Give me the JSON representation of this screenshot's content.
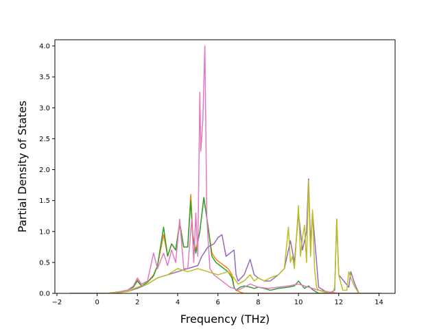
{
  "chart_data": {
    "type": "line",
    "title": "",
    "xlabel": "Frequency (THz)",
    "ylabel": "Partial Density of States",
    "xlim": [
      -2.1,
      14.8
    ],
    "ylim": [
      0.0,
      4.1
    ],
    "xticks": [
      -2,
      0,
      2,
      4,
      6,
      8,
      10,
      12,
      14
    ],
    "yticks": [
      0.0,
      0.5,
      1.0,
      1.5,
      2.0,
      2.5,
      3.0,
      3.5,
      4.0
    ],
    "xtick_labels": [
      "−2",
      "0",
      "2",
      "4",
      "6",
      "8",
      "10",
      "12",
      "14"
    ],
    "ytick_labels": [
      "0.0",
      "0.5",
      "1.0",
      "1.5",
      "2.0",
      "2.5",
      "3.0",
      "3.5",
      "4.0"
    ],
    "grid": false,
    "legend": null,
    "series": [
      {
        "color": "#ff7f0e",
        "x": [
          -1.35,
          0.5,
          1.0,
          1.5,
          1.8,
          2.0,
          2.2,
          2.5,
          2.8,
          3.0,
          3.3,
          3.5,
          3.7,
          3.9,
          4.1,
          4.3,
          4.5,
          4.65,
          4.75,
          4.9,
          5.1,
          5.3,
          5.5,
          5.7,
          5.9,
          6.1,
          6.3,
          6.5,
          6.7,
          6.8,
          6.9,
          7.1,
          7.3,
          7.6,
          7.8,
          8.0,
          8.3,
          8.6,
          9.0,
          9.5,
          9.9,
          10.1,
          10.3,
          10.5,
          10.7,
          10.9,
          11.0,
          11.6,
          12.0,
          12.5,
          13.0,
          14.1
        ],
        "y": [
          0.0,
          0.0,
          0.02,
          0.05,
          0.1,
          0.22,
          0.12,
          0.18,
          0.3,
          0.45,
          0.95,
          0.6,
          0.8,
          0.7,
          1.1,
          0.75,
          0.75,
          1.6,
          0.95,
          0.7,
          1.0,
          1.55,
          1.1,
          0.65,
          0.55,
          0.5,
          0.45,
          0.4,
          0.3,
          0.1,
          0.05,
          0.02,
          0.0,
          0.0,
          0.0,
          0.0,
          0.0,
          0.0,
          0.0,
          0.0,
          0.0,
          0.0,
          0.0,
          0.0,
          0.0,
          0.0,
          0.0,
          0.0,
          0.0,
          0.0,
          0.0,
          0.0
        ]
      },
      {
        "color": "#2ca02c",
        "x": [
          -1.35,
          0.5,
          1.0,
          1.5,
          1.8,
          2.0,
          2.2,
          2.5,
          2.8,
          3.0,
          3.3,
          3.5,
          3.7,
          3.9,
          4.1,
          4.3,
          4.5,
          4.65,
          4.75,
          4.9,
          5.1,
          5.3,
          5.5,
          5.7,
          5.9,
          6.1,
          6.3,
          6.5,
          6.7,
          6.8,
          6.9,
          7.1,
          7.3,
          7.6,
          7.8,
          8.0,
          8.3,
          8.6,
          9.0,
          9.5,
          9.8,
          10.0,
          10.3,
          10.5,
          10.7,
          10.9,
          11.0,
          11.6,
          12.0,
          12.5,
          13.0,
          14.1
        ],
        "y": [
          0.0,
          0.0,
          0.02,
          0.05,
          0.1,
          0.2,
          0.12,
          0.18,
          0.28,
          0.45,
          1.07,
          0.6,
          0.8,
          0.7,
          1.15,
          0.75,
          0.75,
          1.5,
          0.9,
          0.65,
          1.0,
          1.55,
          1.1,
          0.6,
          0.5,
          0.45,
          0.4,
          0.35,
          0.25,
          0.1,
          0.05,
          0.1,
          0.12,
          0.1,
          0.08,
          0.1,
          0.08,
          0.05,
          0.08,
          0.1,
          0.12,
          0.2,
          0.08,
          0.12,
          0.06,
          0.02,
          0.0,
          0.0,
          0.0,
          0.0,
          0.0,
          0.0
        ]
      },
      {
        "color": "#9467bd",
        "x": [
          -1.35,
          0.5,
          1.0,
          1.5,
          2.0,
          2.5,
          3.0,
          3.5,
          4.0,
          4.5,
          5.0,
          5.2,
          5.5,
          5.8,
          6.0,
          6.2,
          6.4,
          6.6,
          6.8,
          6.9,
          7.0,
          7.3,
          7.6,
          7.8,
          8.0,
          8.3,
          8.6,
          9.0,
          9.3,
          9.6,
          9.8,
          10.0,
          10.2,
          10.4,
          10.5,
          10.6,
          10.7,
          10.9,
          11.0,
          11.5,
          11.8,
          11.9,
          12.0,
          12.5,
          12.6,
          12.8,
          13.0,
          14.1
        ],
        "y": [
          0.0,
          0.0,
          0.01,
          0.03,
          0.08,
          0.15,
          0.25,
          0.3,
          0.35,
          0.4,
          0.45,
          0.6,
          0.75,
          0.8,
          0.9,
          0.95,
          0.6,
          0.65,
          0.7,
          0.3,
          0.2,
          0.3,
          0.55,
          0.3,
          0.25,
          0.2,
          0.2,
          0.3,
          0.4,
          0.85,
          0.5,
          1.3,
          0.7,
          1.0,
          1.85,
          0.8,
          1.3,
          0.5,
          0.1,
          0.0,
          0.05,
          1.2,
          0.3,
          0.1,
          0.35,
          0.15,
          0.0,
          0.0
        ]
      },
      {
        "color": "#e377c2",
        "x": [
          -1.35,
          0.5,
          1.0,
          1.5,
          1.8,
          2.0,
          2.2,
          2.5,
          2.8,
          3.0,
          3.3,
          3.5,
          3.7,
          3.9,
          4.1,
          4.3,
          4.5,
          4.7,
          4.8,
          4.9,
          5.0,
          5.1,
          5.15,
          5.25,
          5.35,
          5.45,
          5.6,
          5.8,
          6.0,
          6.2,
          6.4,
          6.6,
          6.8,
          7.0,
          7.3,
          7.6,
          8.0,
          8.5,
          9.0,
          9.5,
          10.0,
          10.5,
          11.0,
          12.0,
          13.0,
          14.1
        ],
        "y": [
          0.0,
          0.0,
          0.02,
          0.05,
          0.12,
          0.25,
          0.15,
          0.2,
          0.65,
          0.4,
          0.65,
          0.45,
          0.7,
          0.5,
          1.2,
          0.4,
          0.4,
          1.2,
          0.5,
          1.3,
          0.6,
          3.25,
          2.3,
          2.8,
          4.0,
          1.2,
          0.4,
          0.3,
          0.25,
          0.2,
          0.15,
          0.1,
          0.08,
          0.05,
          0.1,
          0.15,
          0.1,
          0.08,
          0.1,
          0.12,
          0.15,
          0.1,
          0.05,
          0.0,
          0.0,
          0.0
        ]
      },
      {
        "color": "#bcbd22",
        "x": [
          -1.35,
          0.5,
          1.0,
          1.5,
          2.0,
          2.5,
          3.0,
          3.5,
          4.0,
          4.5,
          5.0,
          5.5,
          6.0,
          6.5,
          6.8,
          7.0,
          7.3,
          7.6,
          7.8,
          8.0,
          8.3,
          8.6,
          9.0,
          9.3,
          9.5,
          9.6,
          9.7,
          9.8,
          9.9,
          10.0,
          10.1,
          10.2,
          10.3,
          10.4,
          10.5,
          10.6,
          10.7,
          10.8,
          10.9,
          11.0,
          11.5,
          11.7,
          11.8,
          11.9,
          12.0,
          12.2,
          12.4,
          12.5,
          12.6,
          12.8,
          13.0,
          14.1
        ],
        "y": [
          0.0,
          0.0,
          0.01,
          0.03,
          0.1,
          0.15,
          0.25,
          0.3,
          0.4,
          0.35,
          0.4,
          0.35,
          0.3,
          0.35,
          0.25,
          0.15,
          0.2,
          0.3,
          0.2,
          0.25,
          0.2,
          0.25,
          0.3,
          0.4,
          1.07,
          0.5,
          0.6,
          0.4,
          0.9,
          1.42,
          0.6,
          0.9,
          1.1,
          0.5,
          1.82,
          0.6,
          1.35,
          0.4,
          0.1,
          0.05,
          0.0,
          0.0,
          0.1,
          1.2,
          0.3,
          0.05,
          0.05,
          0.35,
          0.25,
          0.1,
          0.0,
          0.0
        ]
      }
    ]
  }
}
